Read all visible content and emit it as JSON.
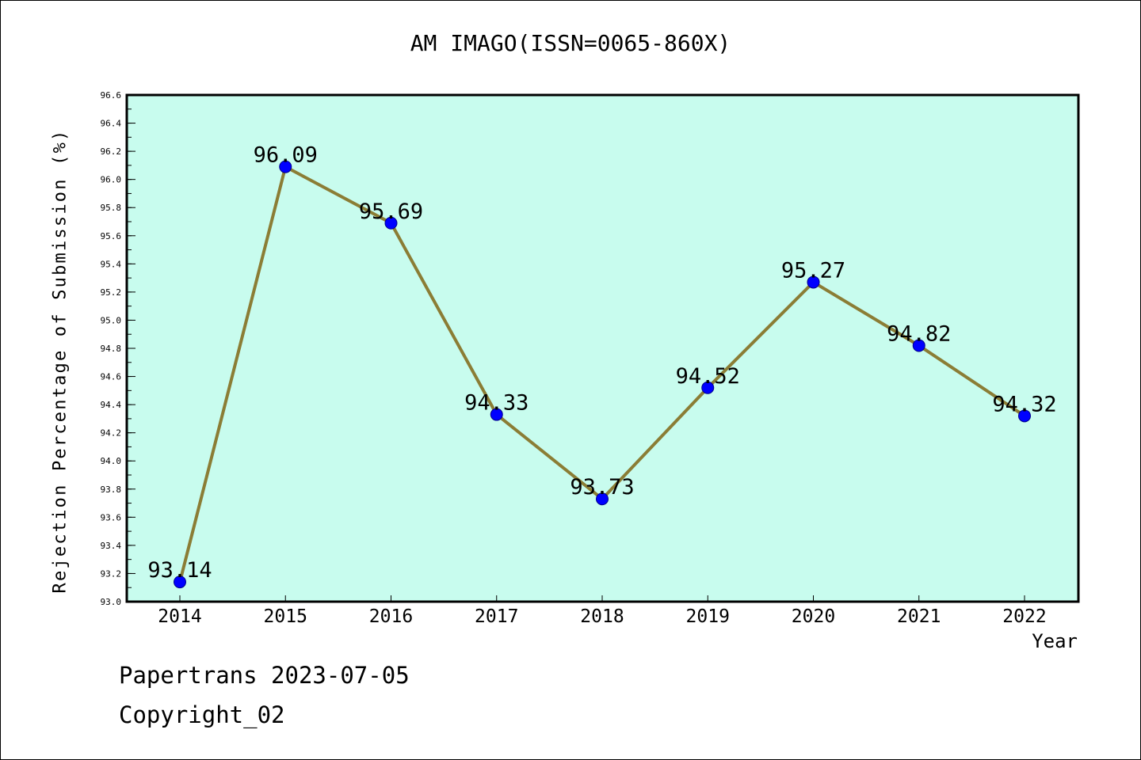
{
  "footer": {
    "line1": "Papertrans 2023-07-05",
    "line2": "Copyright_02"
  },
  "chart_data": {
    "type": "line",
    "title": "AM IMAGO(ISSN=0065-860X)",
    "xlabel": "Year",
    "ylabel": "Rejection Percentage of Submission (%)",
    "categories": [
      "2014",
      "2015",
      "2016",
      "2017",
      "2018",
      "2019",
      "2020",
      "2021",
      "2022"
    ],
    "series": [
      {
        "values": [
          93.14,
          96.09,
          95.69,
          94.33,
          93.73,
          94.52,
          95.27,
          94.82,
          94.32
        ]
      }
    ],
    "data_labels": [
      "93.14",
      "96.09",
      "95.69",
      "94.33",
      "93.73",
      "94.52",
      "95.27",
      "94.82",
      "94.32"
    ],
    "ylim": [
      93.0,
      96.6
    ],
    "yticks": [
      "93.0",
      "93.2",
      "93.4",
      "93.6",
      "93.8",
      "94.0",
      "94.2",
      "94.4",
      "94.6",
      "94.8",
      "95.0",
      "95.2",
      "95.4",
      "95.6",
      "95.8",
      "96.0",
      "96.2",
      "96.4",
      "96.6"
    ],
    "grid": false,
    "colors": {
      "plot_background": "#c8fcee",
      "line": "#8b7d35",
      "marker": "#0000ff",
      "marker_edge": "#00008b"
    }
  }
}
